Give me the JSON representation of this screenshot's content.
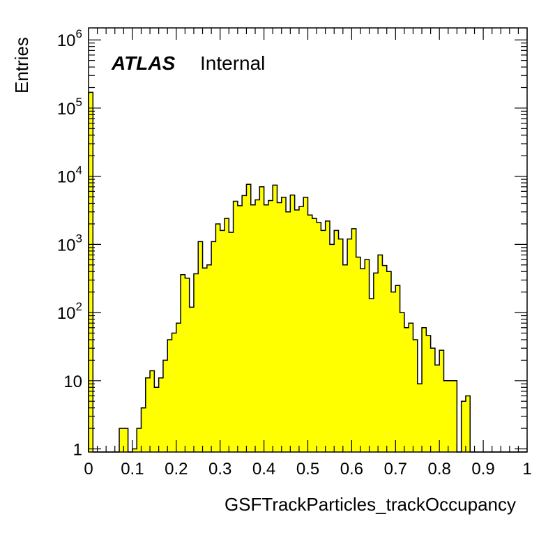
{
  "chart_data": {
    "type": "bar",
    "title": "",
    "xlabel": "GSFTrackParticles_trackOccupancy",
    "ylabel": "Entries",
    "annotation": {
      "experiment": "ATLAS",
      "status": "Internal"
    },
    "xlim": [
      0,
      1
    ],
    "ylim": [
      0.9,
      1500000
    ],
    "y_scale": "log",
    "grid": false,
    "legend": "none",
    "fill_color": "#ffff00",
    "line_color": "#000000",
    "x_tick_labels": [
      "0",
      "0.1",
      "0.2",
      "0.3",
      "0.4",
      "0.5",
      "0.6",
      "0.7",
      "0.8",
      "0.9",
      "1"
    ],
    "y_tick_labels": [
      {
        "value": 1,
        "base": "1",
        "exp": ""
      },
      {
        "value": 10,
        "base": "10",
        "exp": ""
      },
      {
        "value": 100,
        "base": "10",
        "exp": "2"
      },
      {
        "value": 1000,
        "base": "10",
        "exp": "3"
      },
      {
        "value": 10000,
        "base": "10",
        "exp": "4"
      },
      {
        "value": 100000,
        "base": "10",
        "exp": "5"
      },
      {
        "value": 1000000,
        "base": "10",
        "exp": "6"
      }
    ],
    "bin_width": 0.01,
    "bin_start": 0.0,
    "values": [
      170000,
      0,
      0,
      0,
      0,
      0,
      0,
      2,
      2,
      0,
      1,
      2,
      4,
      11,
      14,
      8,
      11,
      20,
      40,
      50,
      70,
      360,
      320,
      120,
      370,
      1100,
      450,
      500,
      1100,
      2000,
      1600,
      2400,
      1500,
      4300,
      3700,
      5200,
      7600,
      3800,
      4500,
      7000,
      3800,
      4400,
      7400,
      4100,
      4900,
      3000,
      5300,
      3200,
      3600,
      4900,
      2700,
      2400,
      2100,
      1600,
      2200,
      1000,
      1600,
      1200,
      500,
      1200,
      1700,
      650,
      440,
      600,
      160,
      380,
      700,
      490,
      400,
      200,
      250,
      100,
      60,
      70,
      40,
      9,
      60,
      46,
      30,
      17,
      28,
      10,
      10,
      10,
      0,
      5,
      6,
      0,
      0,
      0,
      0,
      0,
      0,
      0,
      0,
      0,
      0,
      0,
      0,
      0
    ]
  }
}
